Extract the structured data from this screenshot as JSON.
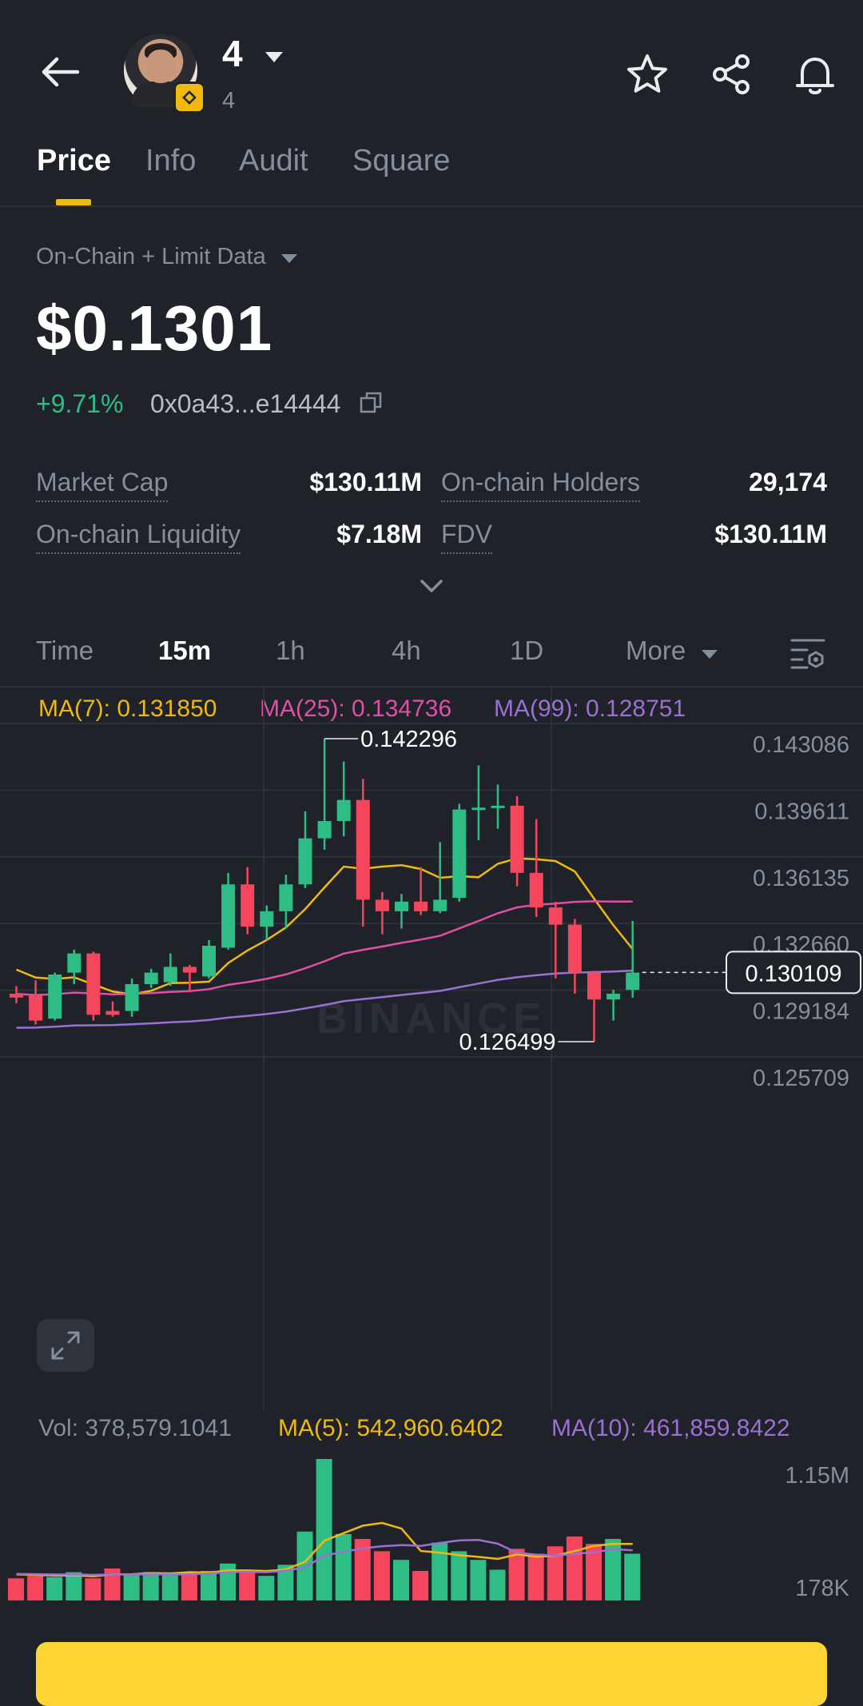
{
  "header": {
    "title": "4",
    "subtitle": "4",
    "back_icon": "arrow-left-icon",
    "actions": [
      "star-icon",
      "share-icon",
      "bell-icon"
    ]
  },
  "tabs": [
    {
      "label": "Price",
      "active": true
    },
    {
      "label": "Info",
      "active": false
    },
    {
      "label": "Audit",
      "active": false
    },
    {
      "label": "Square",
      "active": false
    }
  ],
  "price_section": {
    "data_source": "On-Chain + Limit Data",
    "price": "$0.1301",
    "change": "+9.71%",
    "contract": "0x0a43...e14444"
  },
  "stats": {
    "market_cap_label": "Market Cap",
    "market_cap_value": "$130.11M",
    "holders_label": "On-chain Holders",
    "holders_value": "29,174",
    "liquidity_label": "On-chain Liquidity",
    "liquidity_value": "$7.18M",
    "fdv_label": "FDV",
    "fdv_value": "$130.11M"
  },
  "timeframes": {
    "time_label": "Time",
    "options": [
      "15m",
      "1h",
      "4h",
      "1D"
    ],
    "active": "15m",
    "more_label": "More"
  },
  "indicators": {
    "ma7": "MA(7): 0.131850",
    "ma25": "MA(25): 0.134736",
    "ma99": "MA(99): 0.128751",
    "vol": "Vol: 378,579.1041",
    "vol_ma5": "MA(5): 542,960.6402",
    "vol_ma10": "MA(10): 461,859.8422"
  },
  "colors": {
    "up": "#2ebd85",
    "down": "#f6465d",
    "ma7": "#f0b90b",
    "ma25": "#e04fa6",
    "ma99": "#9b6fd4",
    "accent": "#f0b90b"
  },
  "chart_data": {
    "type": "candlestick",
    "price_axis_ticks": [
      "0.143086",
      "0.139611",
      "0.136135",
      "0.132660",
      "0.129184",
      "0.125709"
    ],
    "ylim": [
      0.125709,
      0.143086
    ],
    "current_price_label": "0.130109",
    "high_label": "0.142296",
    "low_label": "0.126499",
    "watermark": "BINANCE",
    "candles": [
      {
        "o": 0.129,
        "h": 0.1294,
        "l": 0.1285,
        "c": 0.1288
      },
      {
        "o": 0.1289,
        "h": 0.1297,
        "l": 0.1274,
        "c": 0.1276
      },
      {
        "o": 0.1277,
        "h": 0.1301,
        "l": 0.1276,
        "c": 0.13
      },
      {
        "o": 0.1301,
        "h": 0.1313,
        "l": 0.1295,
        "c": 0.1311
      },
      {
        "o": 0.1311,
        "h": 0.1312,
        "l": 0.1276,
        "c": 0.1279
      },
      {
        "o": 0.1281,
        "h": 0.1286,
        "l": 0.1278,
        "c": 0.1279
      },
      {
        "o": 0.1281,
        "h": 0.1298,
        "l": 0.1278,
        "c": 0.1295
      },
      {
        "o": 0.1295,
        "h": 0.1303,
        "l": 0.1293,
        "c": 0.1301
      },
      {
        "o": 0.1296,
        "h": 0.1311,
        "l": 0.1294,
        "c": 0.1304
      },
      {
        "o": 0.1304,
        "h": 0.1305,
        "l": 0.1291,
        "c": 0.1301
      },
      {
        "o": 0.1299,
        "h": 0.1318,
        "l": 0.1298,
        "c": 0.1315
      },
      {
        "o": 0.1314,
        "h": 0.1353,
        "l": 0.1313,
        "c": 0.1347
      },
      {
        "o": 0.1347,
        "h": 0.1356,
        "l": 0.1321,
        "c": 0.1325
      },
      {
        "o": 0.1325,
        "h": 0.1336,
        "l": 0.1318,
        "c": 0.1333
      },
      {
        "o": 0.1333,
        "h": 0.1352,
        "l": 0.1324,
        "c": 0.1347
      },
      {
        "o": 0.1347,
        "h": 0.1385,
        "l": 0.1345,
        "c": 0.1371
      },
      {
        "o": 0.1371,
        "h": 0.1423,
        "l": 0.1365,
        "c": 0.138
      },
      {
        "o": 0.138,
        "h": 0.1411,
        "l": 0.1372,
        "c": 0.1391
      },
      {
        "o": 0.1391,
        "h": 0.1402,
        "l": 0.1325,
        "c": 0.1339
      },
      {
        "o": 0.1339,
        "h": 0.1343,
        "l": 0.1321,
        "c": 0.1333
      },
      {
        "o": 0.1333,
        "h": 0.1342,
        "l": 0.1324,
        "c": 0.1338
      },
      {
        "o": 0.1338,
        "h": 0.1356,
        "l": 0.1331,
        "c": 0.1333
      },
      {
        "o": 0.1333,
        "h": 0.1369,
        "l": 0.1332,
        "c": 0.1339
      },
      {
        "o": 0.134,
        "h": 0.1389,
        "l": 0.1338,
        "c": 0.1386
      },
      {
        "o": 0.1386,
        "h": 0.1409,
        "l": 0.137,
        "c": 0.1387
      },
      {
        "o": 0.1387,
        "h": 0.1399,
        "l": 0.1376,
        "c": 0.1388
      },
      {
        "o": 0.1388,
        "h": 0.1393,
        "l": 0.1346,
        "c": 0.1353
      },
      {
        "o": 0.1353,
        "h": 0.1381,
        "l": 0.133,
        "c": 0.1335
      },
      {
        "o": 0.1335,
        "h": 0.1338,
        "l": 0.1298,
        "c": 0.1326
      },
      {
        "o": 0.1326,
        "h": 0.1329,
        "l": 0.129,
        "c": 0.1301
      },
      {
        "o": 0.1301,
        "h": 0.1302,
        "l": 0.1265,
        "c": 0.1287
      },
      {
        "o": 0.1287,
        "h": 0.1292,
        "l": 0.1276,
        "c": 0.129
      },
      {
        "o": 0.1292,
        "h": 0.1328,
        "l": 0.1288,
        "c": 0.1301
      }
    ],
    "volume_axis_ticks": [
      "1.15M",
      "178K"
    ],
    "volumes": [
      180000,
      200000,
      190000,
      230000,
      180000,
      260000,
      210000,
      230000,
      220000,
      230000,
      240000,
      300000,
      230000,
      200000,
      290000,
      560000,
      1150000,
      540000,
      500000,
      400000,
      330000,
      240000,
      470000,
      400000,
      330000,
      250000,
      420000,
      380000,
      440000,
      520000,
      460000,
      500000,
      380000
    ]
  }
}
